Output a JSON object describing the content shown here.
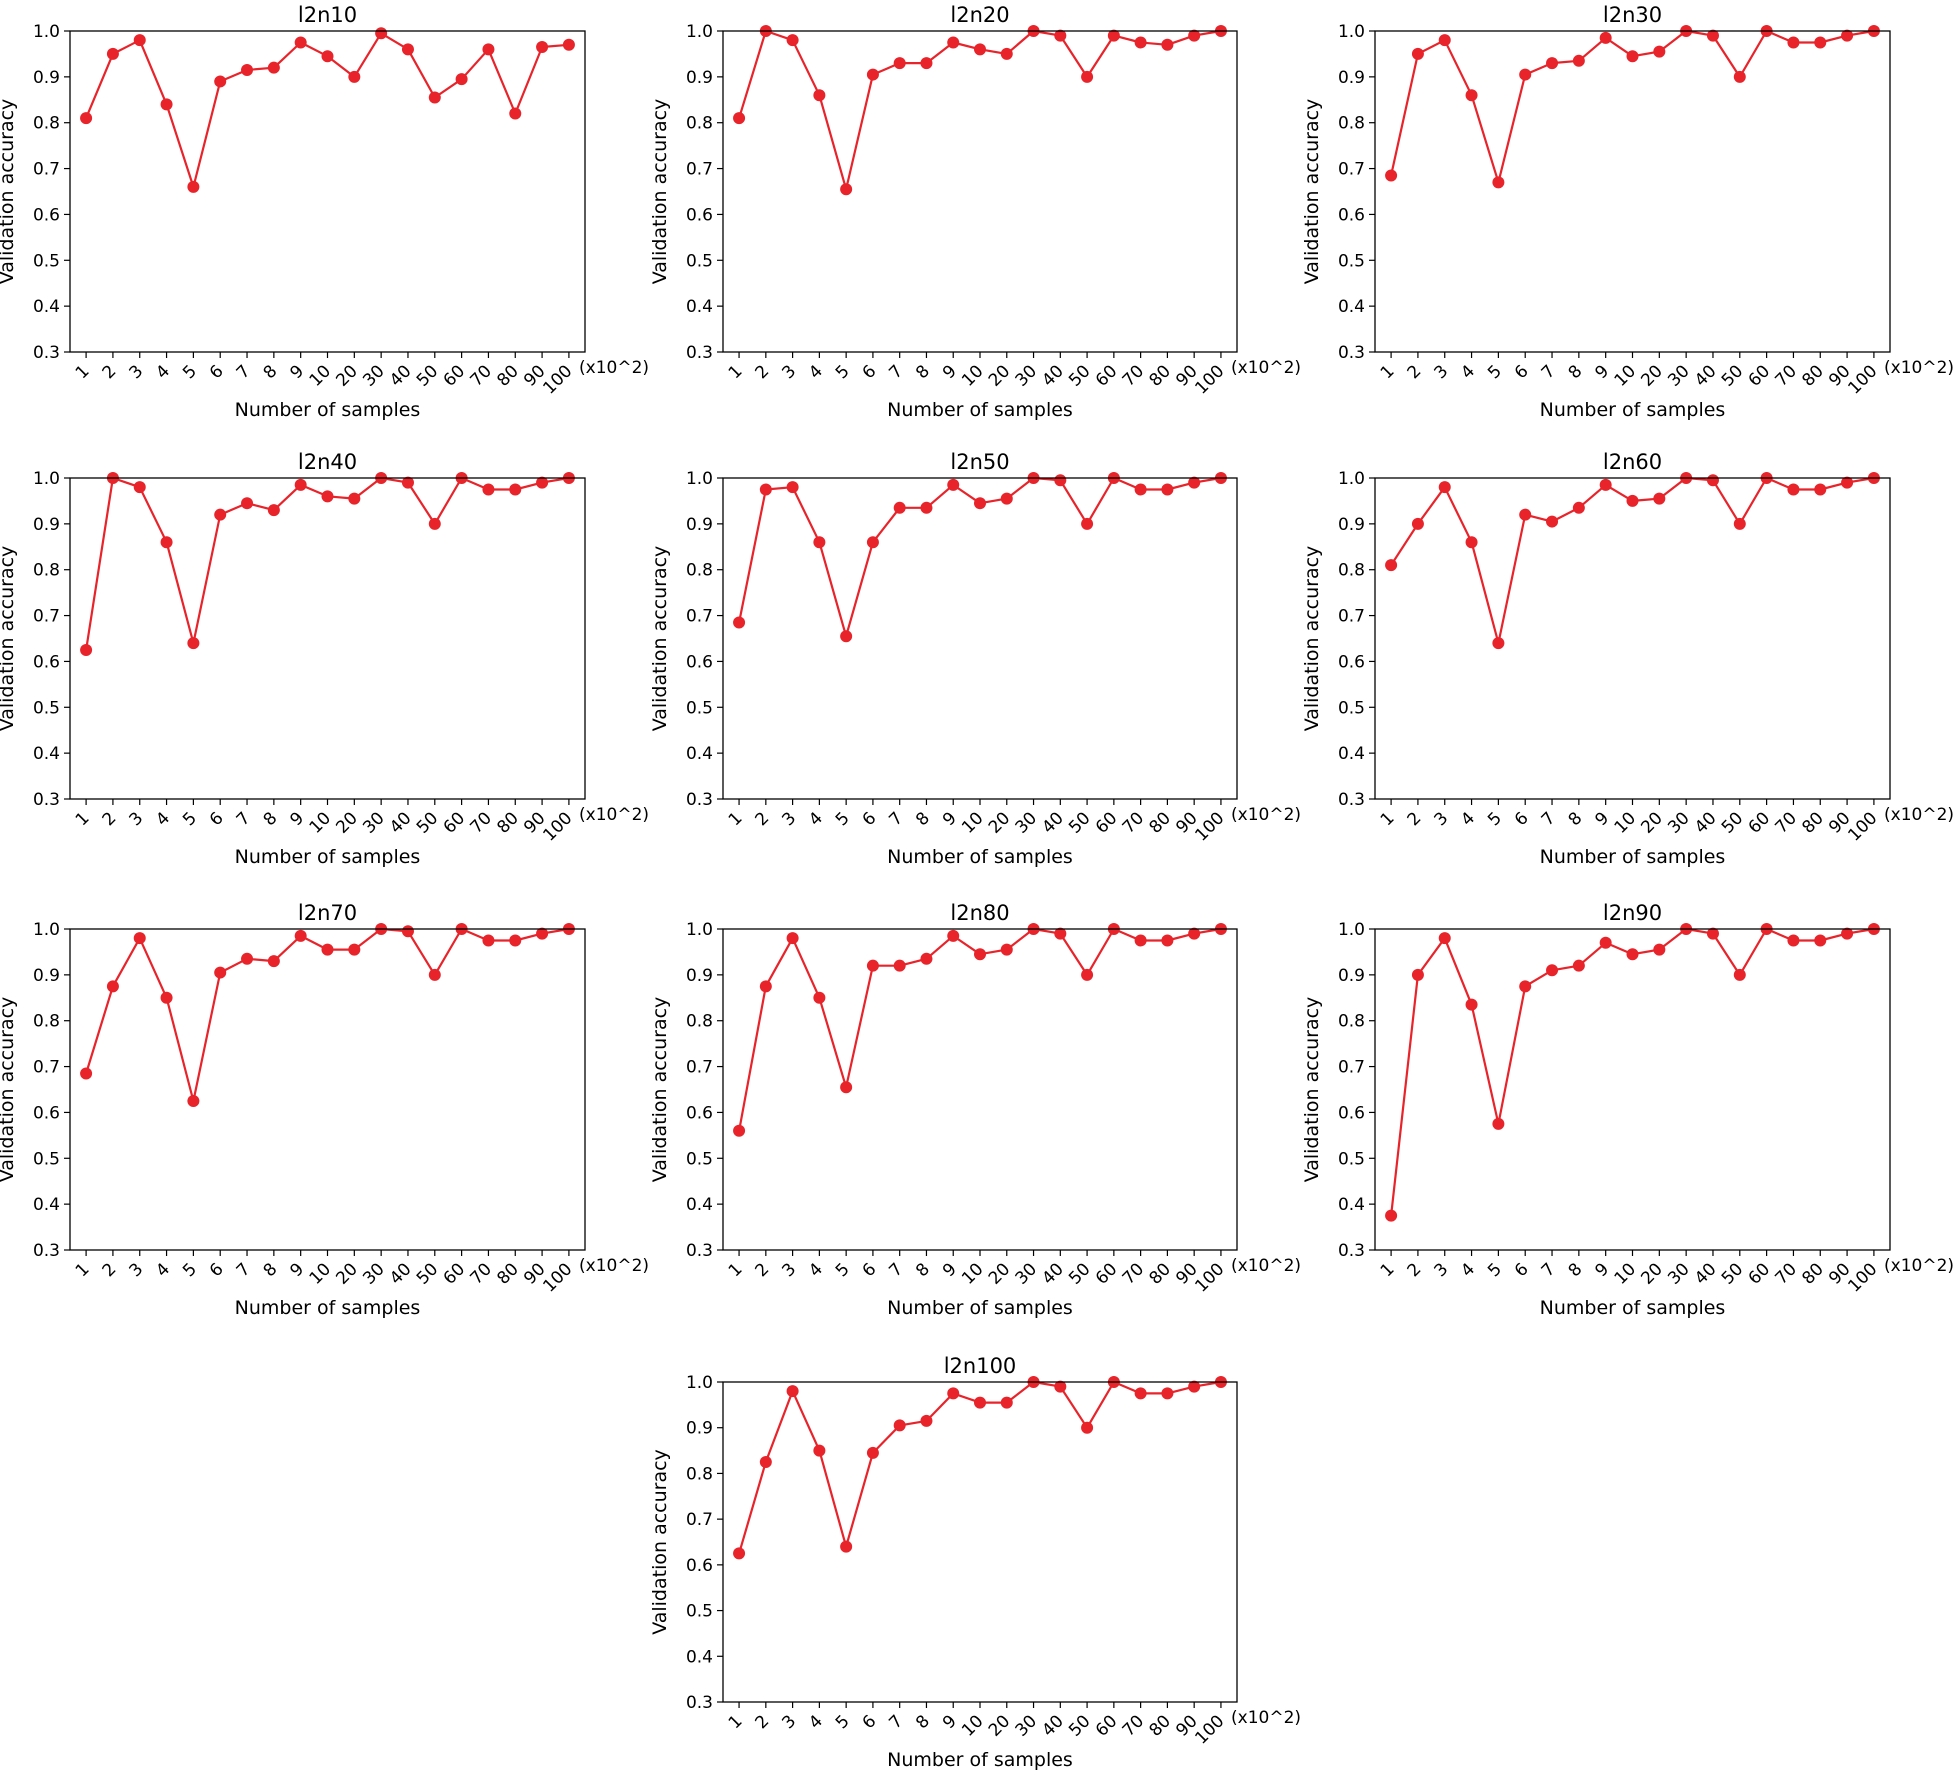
{
  "figure": {
    "series_color": "#e8232a",
    "chart_data": [
      {
        "type": "line",
        "title": "l2n10",
        "xlabel": "Number of samples",
        "ylabel": "Validation accuracy",
        "x_unit": "(x10^2)",
        "categories": [
          "1",
          "2",
          "3",
          "4",
          "5",
          "6",
          "7",
          "8",
          "9",
          "10",
          "20",
          "30",
          "40",
          "50",
          "60",
          "70",
          "80",
          "90",
          "100"
        ],
        "values": [
          0.81,
          0.95,
          0.98,
          0.84,
          0.66,
          0.89,
          0.915,
          0.92,
          0.975,
          0.945,
          0.9,
          0.995,
          0.96,
          0.855,
          0.895,
          0.96,
          0.82,
          0.965,
          0.97
        ],
        "ylim": [
          0.3,
          1.0
        ],
        "yticks": [
          "0.3",
          "0.4",
          "0.5",
          "0.6",
          "0.7",
          "0.8",
          "0.9",
          "1.0"
        ],
        "grid": false,
        "marker": "circle"
      },
      {
        "type": "line",
        "title": "l2n20",
        "xlabel": "Number of samples",
        "ylabel": "Validation accuracy",
        "x_unit": "(x10^2)",
        "categories": [
          "1",
          "2",
          "3",
          "4",
          "5",
          "6",
          "7",
          "8",
          "9",
          "10",
          "20",
          "30",
          "40",
          "50",
          "60",
          "70",
          "80",
          "90",
          "100"
        ],
        "values": [
          0.81,
          1.0,
          0.98,
          0.86,
          0.655,
          0.905,
          0.93,
          0.93,
          0.975,
          0.96,
          0.95,
          1.0,
          0.99,
          0.9,
          0.99,
          0.975,
          0.97,
          0.99,
          1.0
        ],
        "ylim": [
          0.3,
          1.0
        ],
        "yticks": [
          "0.3",
          "0.4",
          "0.5",
          "0.6",
          "0.7",
          "0.8",
          "0.9",
          "1.0"
        ],
        "grid": false,
        "marker": "circle"
      },
      {
        "type": "line",
        "title": "l2n30",
        "xlabel": "Number of samples",
        "ylabel": "Validation accuracy",
        "x_unit": "(x10^2)",
        "categories": [
          "1",
          "2",
          "3",
          "4",
          "5",
          "6",
          "7",
          "8",
          "9",
          "10",
          "20",
          "30",
          "40",
          "50",
          "60",
          "70",
          "80",
          "90",
          "100"
        ],
        "values": [
          0.685,
          0.95,
          0.98,
          0.86,
          0.67,
          0.905,
          0.93,
          0.935,
          0.985,
          0.945,
          0.955,
          1.0,
          0.99,
          0.9,
          1.0,
          0.975,
          0.975,
          0.99,
          1.0
        ],
        "ylim": [
          0.3,
          1.0
        ],
        "yticks": [
          "0.3",
          "0.4",
          "0.5",
          "0.6",
          "0.7",
          "0.8",
          "0.9",
          "1.0"
        ],
        "grid": false,
        "marker": "circle"
      },
      {
        "type": "line",
        "title": "l2n40",
        "xlabel": "Number of samples",
        "ylabel": "Validation accuracy",
        "x_unit": "(x10^2)",
        "categories": [
          "1",
          "2",
          "3",
          "4",
          "5",
          "6",
          "7",
          "8",
          "9",
          "10",
          "20",
          "30",
          "40",
          "50",
          "60",
          "70",
          "80",
          "90",
          "100"
        ],
        "values": [
          0.625,
          1.0,
          0.98,
          0.86,
          0.64,
          0.92,
          0.945,
          0.93,
          0.985,
          0.96,
          0.955,
          1.0,
          0.99,
          0.9,
          1.0,
          0.975,
          0.975,
          0.99,
          1.0
        ],
        "ylim": [
          0.3,
          1.0
        ],
        "yticks": [
          "0.3",
          "0.4",
          "0.5",
          "0.6",
          "0.7",
          "0.8",
          "0.9",
          "1.0"
        ],
        "grid": false,
        "marker": "circle"
      },
      {
        "type": "line",
        "title": "l2n50",
        "xlabel": "Number of samples",
        "ylabel": "Validation accuracy",
        "x_unit": "(x10^2)",
        "categories": [
          "1",
          "2",
          "3",
          "4",
          "5",
          "6",
          "7",
          "8",
          "9",
          "10",
          "20",
          "30",
          "40",
          "50",
          "60",
          "70",
          "80",
          "90",
          "100"
        ],
        "values": [
          0.685,
          0.975,
          0.98,
          0.86,
          0.655,
          0.86,
          0.935,
          0.935,
          0.985,
          0.945,
          0.955,
          1.0,
          0.995,
          0.9,
          1.0,
          0.975,
          0.975,
          0.99,
          1.0
        ],
        "ylim": [
          0.3,
          1.0
        ],
        "yticks": [
          "0.3",
          "0.4",
          "0.5",
          "0.6",
          "0.7",
          "0.8",
          "0.9",
          "1.0"
        ],
        "grid": false,
        "marker": "circle"
      },
      {
        "type": "line",
        "title": "l2n60",
        "xlabel": "Number of samples",
        "ylabel": "Validation accuracy",
        "x_unit": "(x10^2)",
        "categories": [
          "1",
          "2",
          "3",
          "4",
          "5",
          "6",
          "7",
          "8",
          "9",
          "10",
          "20",
          "30",
          "40",
          "50",
          "60",
          "70",
          "80",
          "90",
          "100"
        ],
        "values": [
          0.81,
          0.9,
          0.98,
          0.86,
          0.64,
          0.92,
          0.905,
          0.935,
          0.985,
          0.95,
          0.955,
          1.0,
          0.995,
          0.9,
          1.0,
          0.975,
          0.975,
          0.99,
          1.0
        ],
        "ylim": [
          0.3,
          1.0
        ],
        "yticks": [
          "0.3",
          "0.4",
          "0.5",
          "0.6",
          "0.7",
          "0.8",
          "0.9",
          "1.0"
        ],
        "grid": false,
        "marker": "circle"
      },
      {
        "type": "line",
        "title": "l2n70",
        "xlabel": "Number of samples",
        "ylabel": "Validation accuracy",
        "x_unit": "(x10^2)",
        "categories": [
          "1",
          "2",
          "3",
          "4",
          "5",
          "6",
          "7",
          "8",
          "9",
          "10",
          "20",
          "30",
          "40",
          "50",
          "60",
          "70",
          "80",
          "90",
          "100"
        ],
        "values": [
          0.685,
          0.875,
          0.98,
          0.85,
          0.625,
          0.905,
          0.935,
          0.93,
          0.985,
          0.955,
          0.955,
          1.0,
          0.995,
          0.9,
          1.0,
          0.975,
          0.975,
          0.99,
          1.0
        ],
        "ylim": [
          0.3,
          1.0
        ],
        "yticks": [
          "0.3",
          "0.4",
          "0.5",
          "0.6",
          "0.7",
          "0.8",
          "0.9",
          "1.0"
        ],
        "grid": false,
        "marker": "circle"
      },
      {
        "type": "line",
        "title": "l2n80",
        "xlabel": "Number of samples",
        "ylabel": "Validation accuracy",
        "x_unit": "(x10^2)",
        "categories": [
          "1",
          "2",
          "3",
          "4",
          "5",
          "6",
          "7",
          "8",
          "9",
          "10",
          "20",
          "30",
          "40",
          "50",
          "60",
          "70",
          "80",
          "90",
          "100"
        ],
        "values": [
          0.56,
          0.875,
          0.98,
          0.85,
          0.655,
          0.92,
          0.92,
          0.935,
          0.985,
          0.945,
          0.955,
          1.0,
          0.99,
          0.9,
          1.0,
          0.975,
          0.975,
          0.99,
          1.0
        ],
        "ylim": [
          0.3,
          1.0
        ],
        "yticks": [
          "0.3",
          "0.4",
          "0.5",
          "0.6",
          "0.7",
          "0.8",
          "0.9",
          "1.0"
        ],
        "grid": false,
        "marker": "circle"
      },
      {
        "type": "line",
        "title": "l2n90",
        "xlabel": "Number of samples",
        "ylabel": "Validation accuracy",
        "x_unit": "(x10^2)",
        "categories": [
          "1",
          "2",
          "3",
          "4",
          "5",
          "6",
          "7",
          "8",
          "9",
          "10",
          "20",
          "30",
          "40",
          "50",
          "60",
          "70",
          "80",
          "90",
          "100"
        ],
        "values": [
          0.375,
          0.9,
          0.98,
          0.835,
          0.575,
          0.875,
          0.91,
          0.92,
          0.97,
          0.945,
          0.955,
          1.0,
          0.99,
          0.9,
          1.0,
          0.975,
          0.975,
          0.99,
          1.0
        ],
        "ylim": [
          0.3,
          1.0
        ],
        "yticks": [
          "0.3",
          "0.4",
          "0.5",
          "0.6",
          "0.7",
          "0.8",
          "0.9",
          "1.0"
        ],
        "grid": false,
        "marker": "circle"
      },
      {
        "type": "line",
        "title": "l2n100",
        "xlabel": "Number of samples",
        "ylabel": "Validation accuracy",
        "x_unit": "(x10^2)",
        "categories": [
          "1",
          "2",
          "3",
          "4",
          "5",
          "6",
          "7",
          "8",
          "9",
          "10",
          "20",
          "30",
          "40",
          "50",
          "60",
          "70",
          "80",
          "90",
          "100"
        ],
        "values": [
          0.625,
          0.825,
          0.98,
          0.85,
          0.64,
          0.845,
          0.905,
          0.915,
          0.975,
          0.955,
          0.955,
          1.0,
          0.99,
          0.9,
          1.0,
          0.975,
          0.975,
          0.99,
          1.0
        ],
        "ylim": [
          0.3,
          1.0
        ],
        "yticks": [
          "0.3",
          "0.4",
          "0.5",
          "0.6",
          "0.7",
          "0.8",
          "0.9",
          "1.0"
        ],
        "grid": false,
        "marker": "circle"
      }
    ]
  }
}
